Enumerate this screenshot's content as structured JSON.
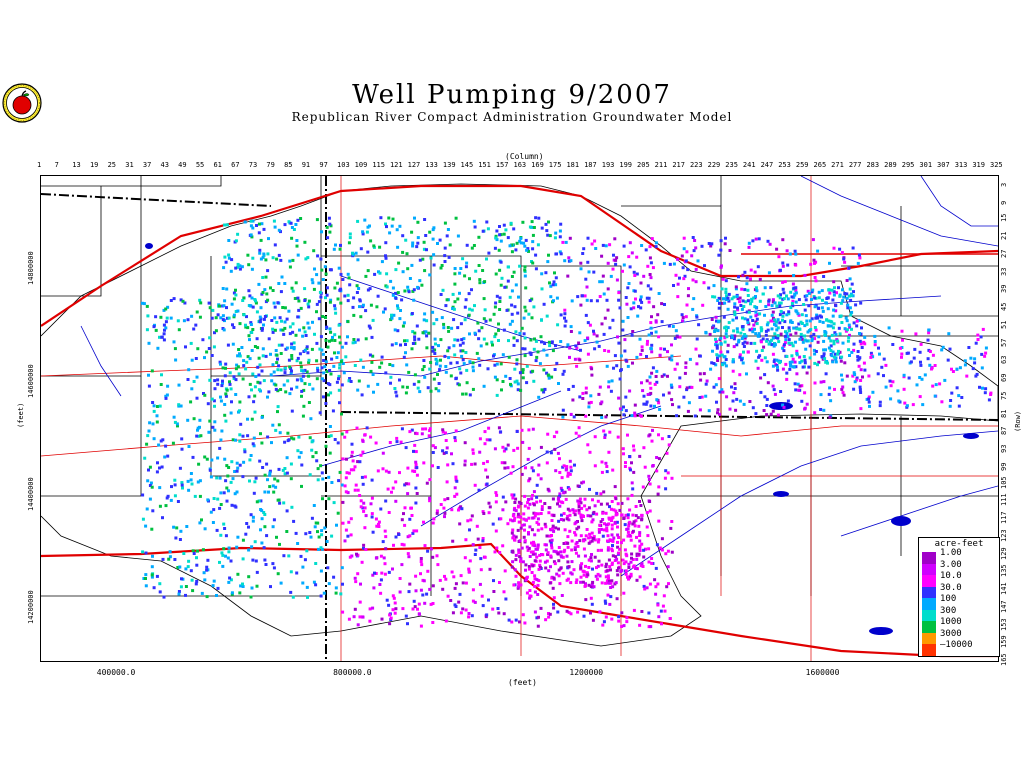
{
  "title": "Well Pumping 9/2007",
  "subtitle": "Republican River Compact Administration Groundwater Model",
  "logo_icon": "apple-logo-icon",
  "column_axis": {
    "label": "(Column)",
    "ticks": [
      1,
      7,
      13,
      19,
      25,
      31,
      37,
      43,
      49,
      55,
      61,
      67,
      73,
      79,
      85,
      91,
      97,
      103,
      109,
      115,
      121,
      127,
      133,
      139,
      145,
      151,
      157,
      163,
      169,
      175,
      181,
      187,
      193,
      199,
      205,
      211,
      217,
      223,
      229,
      235,
      241,
      247,
      253,
      259,
      265,
      271,
      277,
      283,
      289,
      295,
      301,
      307,
      313,
      319,
      325
    ]
  },
  "row_axis": {
    "label": "(Row)",
    "ticks": [
      3,
      9,
      15,
      21,
      27,
      33,
      39,
      45,
      51,
      57,
      63,
      69,
      75,
      81,
      87,
      93,
      99,
      105,
      111,
      117,
      123,
      129,
      135,
      141,
      147,
      153,
      159,
      165
    ]
  },
  "x_axis": {
    "label": "(feet)",
    "ticks": [
      {
        "label": "400000.0",
        "value": 400000
      },
      {
        "label": "800000.0",
        "value": 800000
      },
      {
        "label": "1200000",
        "value": 1200000
      },
      {
        "label": "1600000",
        "value": 1600000
      }
    ]
  },
  "y_axis": {
    "label": "(feet)",
    "ticks": [
      {
        "label": "14800000",
        "value": 14800000
      },
      {
        "label": "14600000",
        "value": 14600000
      },
      {
        "label": "14400000",
        "value": 14400000
      },
      {
        "label": "14200000",
        "value": 14200000
      }
    ]
  },
  "legend": {
    "title": "acre-feet",
    "items": [
      {
        "label": "1.00",
        "color": "#a000c8"
      },
      {
        "label": "3.00",
        "color": "#d000ff"
      },
      {
        "label": "10.0",
        "color": "#ff00ff"
      },
      {
        "label": "30.0",
        "color": "#3030ff"
      },
      {
        "label": "100",
        "color": "#00aaff"
      },
      {
        "label": "300",
        "color": "#00ddcc"
      },
      {
        "label": "1000",
        "color": "#00c040"
      },
      {
        "label": "3000",
        "color": "#ff9900"
      },
      {
        "label": "10000",
        "color": "#ff3300"
      }
    ]
  },
  "colors": {
    "roads": "#e00000",
    "rivers": "#0000cc",
    "boundaries": "#000000"
  }
}
